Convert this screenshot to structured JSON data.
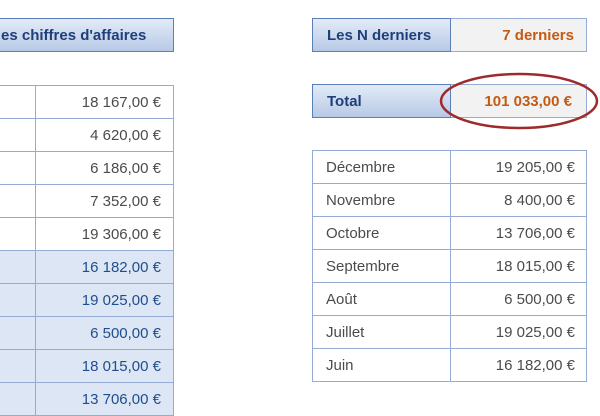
{
  "left_header": {
    "title": "es chiffres d'affaires"
  },
  "left_values": [
    {
      "value": "18 167,00 €",
      "highlighted": false
    },
    {
      "value": "4 620,00 €",
      "highlighted": false
    },
    {
      "value": "6 186,00 €",
      "highlighted": false
    },
    {
      "value": "7 352,00 €",
      "highlighted": false
    },
    {
      "value": "19 306,00 €",
      "highlighted": false
    },
    {
      "value": "16 182,00 €",
      "highlighted": true
    },
    {
      "value": "19 025,00 €",
      "highlighted": true
    },
    {
      "value": "6 500,00 €",
      "highlighted": true
    },
    {
      "value": "18 015,00 €",
      "highlighted": true
    },
    {
      "value": "13 706,00 €",
      "highlighted": true
    }
  ],
  "n_last": {
    "label": "Les N derniers",
    "value": "7 derniers"
  },
  "total": {
    "label": "Total",
    "value": "101 033,00 €"
  },
  "months": [
    {
      "month": "Décembre",
      "value": "19 205,00 €"
    },
    {
      "month": "Novembre",
      "value": "8 400,00 €"
    },
    {
      "month": "Octobre",
      "value": "13 706,00 €"
    },
    {
      "month": "Septembre",
      "value": "18 015,00 €"
    },
    {
      "month": "Août",
      "value": "6 500,00 €"
    },
    {
      "month": "Juillet",
      "value": "19 025,00 €"
    },
    {
      "month": "Juin",
      "value": "16 182,00 €"
    }
  ],
  "colors": {
    "header_text": "#1f3f7a",
    "accent_orange": "#c55a11",
    "circle_red": "#9e2a2b",
    "highlight_fill": "#dde6f4",
    "grid_line": "#95abd3"
  }
}
